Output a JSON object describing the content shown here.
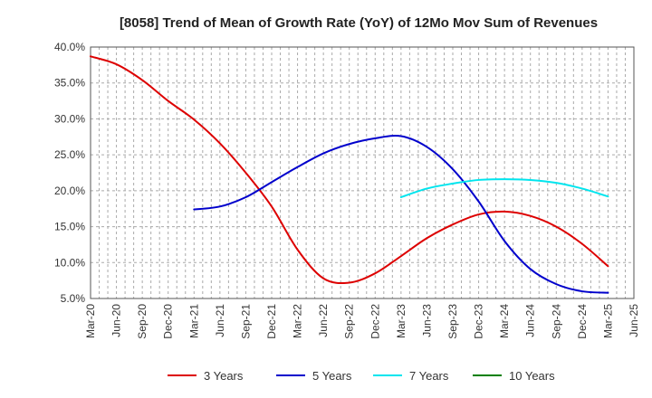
{
  "chart_data": {
    "type": "line",
    "title": "[8058]  Trend of Mean of Growth Rate (YoY) of 12Mo Mov Sum of Revenues",
    "xlabel": "",
    "ylabel": "",
    "ylim": [
      5.0,
      40.0
    ],
    "y_ticks": [
      "5.0%",
      "10.0%",
      "15.0%",
      "20.0%",
      "25.0%",
      "30.0%",
      "35.0%",
      "40.0%"
    ],
    "y_tick_values": [
      5,
      10,
      15,
      20,
      25,
      30,
      35,
      40
    ],
    "x_range": [
      0,
      21
    ],
    "categories": [
      "Mar-20",
      "Jun-20",
      "Sep-20",
      "Dec-20",
      "Mar-21",
      "Jun-21",
      "Sep-21",
      "Dec-21",
      "Mar-22",
      "Jun-22",
      "Sep-22",
      "Dec-22",
      "Mar-23",
      "Jun-23",
      "Sep-23",
      "Dec-23",
      "Mar-24",
      "Jun-24",
      "Sep-24",
      "Dec-24",
      "Mar-25",
      "Jun-25"
    ],
    "grid": true,
    "legend_position": "bottom",
    "series": [
      {
        "name": "3 Years",
        "color": "#dd0000",
        "x": [
          0,
          1,
          2,
          3,
          4,
          5,
          6,
          7,
          8,
          9,
          10,
          11,
          12,
          13,
          14,
          15,
          16,
          17,
          18,
          19,
          20
        ],
        "values": [
          38.7,
          37.6,
          35.4,
          32.5,
          29.9,
          26.6,
          22.5,
          17.8,
          11.8,
          7.8,
          7.2,
          8.5,
          10.9,
          13.4,
          15.3,
          16.7,
          17.1,
          16.5,
          15.0,
          12.6,
          9.5
        ]
      },
      {
        "name": "5 Years",
        "color": "#0000cc",
        "x": [
          4,
          5,
          6,
          7,
          8,
          9,
          10,
          11,
          12,
          13,
          14,
          15,
          16,
          17,
          18,
          19,
          20
        ],
        "values": [
          17.4,
          17.8,
          19.1,
          21.2,
          23.3,
          25.2,
          26.5,
          27.3,
          27.6,
          26.1,
          23.0,
          18.5,
          13.0,
          9.1,
          7.0,
          6.0,
          5.8
        ]
      },
      {
        "name": "7 Years",
        "color": "#00e5ee",
        "x": [
          12,
          13,
          14,
          15,
          16,
          17,
          18,
          19,
          20
        ],
        "values": [
          19.1,
          20.3,
          21.0,
          21.5,
          21.6,
          21.5,
          21.1,
          20.3,
          19.2
        ]
      },
      {
        "name": "10 Years",
        "color": "#008000",
        "x": [],
        "values": []
      }
    ]
  }
}
